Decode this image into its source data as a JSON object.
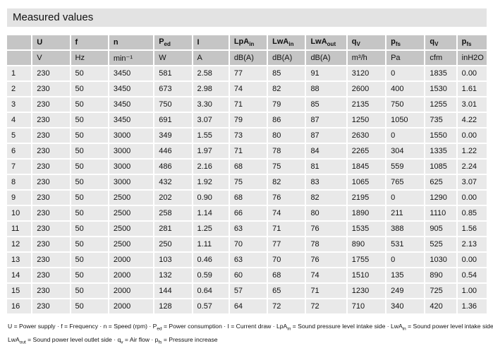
{
  "title": "Measured values",
  "colors": {
    "title_bg": "#e3e3e3",
    "header_bg": "#c5c5c5",
    "row_bg": "#e9e9e9"
  },
  "table": {
    "columns": [
      {
        "base": "",
        "sub": "",
        "unit": ""
      },
      {
        "base": "U",
        "sub": "",
        "unit": "V"
      },
      {
        "base": "f",
        "sub": "",
        "unit": "Hz"
      },
      {
        "base": "n",
        "sub": "",
        "unit": "min⁻¹"
      },
      {
        "base": "P",
        "sub": "ed",
        "unit": "W"
      },
      {
        "base": "I",
        "sub": "",
        "unit": "A"
      },
      {
        "base": "LpA",
        "sub": "in",
        "unit": "dB(A)"
      },
      {
        "base": "LwA",
        "sub": "in",
        "unit": "dB(A)"
      },
      {
        "base": "LwA",
        "sub": "out",
        "unit": "dB(A)"
      },
      {
        "base": "q",
        "sub": "V",
        "unit": "m³/h"
      },
      {
        "base": "p",
        "sub": "fs",
        "unit": "Pa"
      },
      {
        "base": "q",
        "sub": "V",
        "unit": "cfm"
      },
      {
        "base": "p",
        "sub": "fs",
        "unit": "inH2O"
      }
    ],
    "rows": [
      [
        "1",
        "230",
        "50",
        "3450",
        "581",
        "2.58",
        "77",
        "85",
        "91",
        "3120",
        "0",
        "1835",
        "0.00"
      ],
      [
        "2",
        "230",
        "50",
        "3450",
        "673",
        "2.98",
        "74",
        "82",
        "88",
        "2600",
        "400",
        "1530",
        "1.61"
      ],
      [
        "3",
        "230",
        "50",
        "3450",
        "750",
        "3.30",
        "71",
        "79",
        "85",
        "2135",
        "750",
        "1255",
        "3.01"
      ],
      [
        "4",
        "230",
        "50",
        "3450",
        "691",
        "3.07",
        "79",
        "86",
        "87",
        "1250",
        "1050",
        "735",
        "4.22"
      ],
      [
        "5",
        "230",
        "50",
        "3000",
        "349",
        "1.55",
        "73",
        "80",
        "87",
        "2630",
        "0",
        "1550",
        "0.00"
      ],
      [
        "6",
        "230",
        "50",
        "3000",
        "446",
        "1.97",
        "71",
        "78",
        "84",
        "2265",
        "304",
        "1335",
        "1.22"
      ],
      [
        "7",
        "230",
        "50",
        "3000",
        "486",
        "2.16",
        "68",
        "75",
        "81",
        "1845",
        "559",
        "1085",
        "2.24"
      ],
      [
        "8",
        "230",
        "50",
        "3000",
        "432",
        "1.92",
        "75",
        "82",
        "83",
        "1065",
        "765",
        "625",
        "3.07"
      ],
      [
        "9",
        "230",
        "50",
        "2500",
        "202",
        "0.90",
        "68",
        "76",
        "82",
        "2195",
        "0",
        "1290",
        "0.00"
      ],
      [
        "10",
        "230",
        "50",
        "2500",
        "258",
        "1.14",
        "66",
        "74",
        "80",
        "1890",
        "211",
        "1110",
        "0.85"
      ],
      [
        "11",
        "230",
        "50",
        "2500",
        "281",
        "1.25",
        "63",
        "71",
        "76",
        "1535",
        "388",
        "905",
        "1.56"
      ],
      [
        "12",
        "230",
        "50",
        "2500",
        "250",
        "1.11",
        "70",
        "77",
        "78",
        "890",
        "531",
        "525",
        "2.13"
      ],
      [
        "13",
        "230",
        "50",
        "2000",
        "103",
        "0.46",
        "63",
        "70",
        "76",
        "1755",
        "0",
        "1030",
        "0.00"
      ],
      [
        "14",
        "230",
        "50",
        "2000",
        "132",
        "0.59",
        "60",
        "68",
        "74",
        "1510",
        "135",
        "890",
        "0.54"
      ],
      [
        "15",
        "230",
        "50",
        "2000",
        "144",
        "0.64",
        "57",
        "65",
        "71",
        "1230",
        "249",
        "725",
        "1.00"
      ],
      [
        "16",
        "230",
        "50",
        "2000",
        "128",
        "0.57",
        "64",
        "72",
        "72",
        "710",
        "340",
        "420",
        "1.36"
      ]
    ]
  },
  "footnote": {
    "line1": [
      {
        "t": "U = Power supply · f = Frequency · n = Speed (rpm) · P"
      },
      {
        "s": "ed"
      },
      {
        "t": " = Power consumption · I = Current draw · LpA"
      },
      {
        "s": "in"
      },
      {
        "t": " = Sound pressure level intake side · LwA"
      },
      {
        "s": "in"
      },
      {
        "t": " = Sound power level intake side"
      }
    ],
    "line2": [
      {
        "t": "LwA"
      },
      {
        "s": "out"
      },
      {
        "t": " = Sound power level outlet side · q"
      },
      {
        "s": "v"
      },
      {
        "t": " = Air flow · p"
      },
      {
        "s": "fs"
      },
      {
        "t": " = Pressure increase"
      }
    ]
  }
}
